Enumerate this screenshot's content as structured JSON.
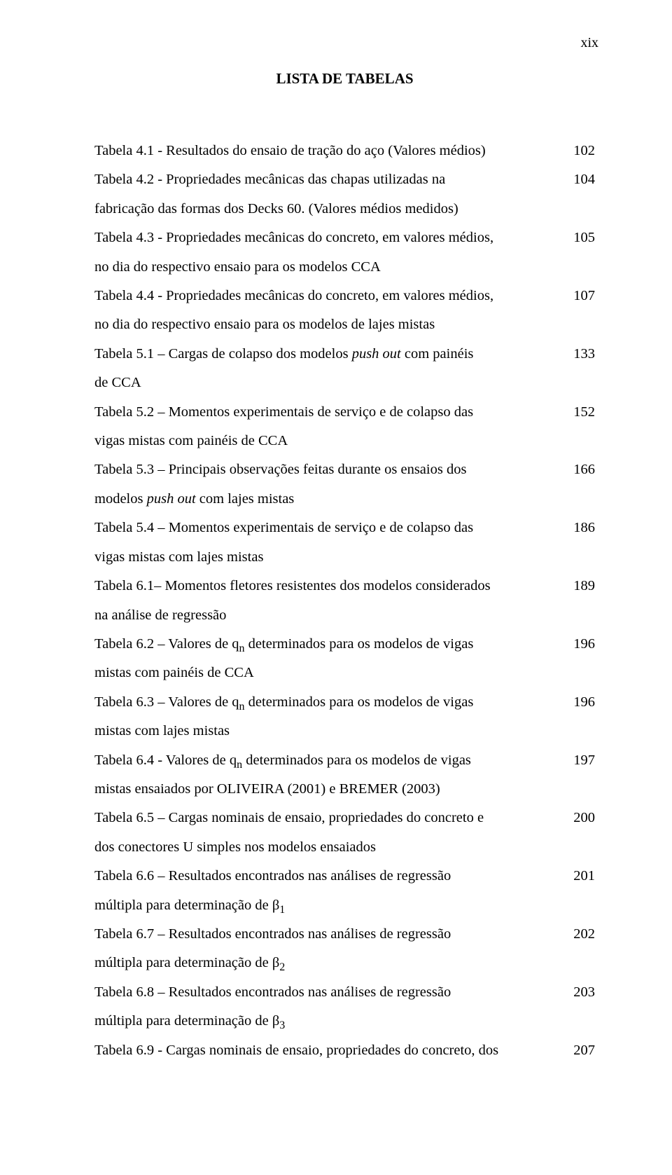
{
  "page_label": "xix",
  "title": "LISTA DE TABELAS",
  "font_family": "Times New Roman",
  "title_fontsize_pt": 16,
  "body_fontsize_pt": 15,
  "text_color": "#000000",
  "background_color": "#ffffff",
  "line_height": 2.02,
  "entries": [
    {
      "first": "Tabela 4.1 - Resultados do ensaio de tração do aço (Valores médios)",
      "rest": "",
      "page": "102"
    },
    {
      "first": "Tabela 4.2 - Propriedades mecânicas das chapas utilizadas na",
      "rest": "fabricação das formas dos Decks 60. (Valores médios medidos)",
      "page": "104"
    },
    {
      "first": "Tabela 4.3 - Propriedades mecânicas do concreto, em valores médios,",
      "rest": "no dia do respectivo ensaio para os modelos CCA",
      "page": "105"
    },
    {
      "first": "Tabela 4.4 - Propriedades mecânicas do concreto, em valores médios,",
      "rest": "no dia do respectivo ensaio para os modelos de lajes mistas",
      "page": "107"
    },
    {
      "first_html": "Tabela 5.1 – Cargas de colapso dos modelos <span class=\"italic\">push out</span> com painéis",
      "rest": "de CCA",
      "page": "133"
    },
    {
      "first": "Tabela 5.2 – Momentos experimentais de serviço e de colapso das",
      "rest": "vigas mistas com painéis de CCA",
      "page": "152"
    },
    {
      "first": "Tabela 5.3 – Principais observações feitas durante os ensaios dos",
      "rest_html": "modelos <span class=\"italic\">push out</span> com lajes mistas",
      "page": "166"
    },
    {
      "first": "Tabela 5.4 – Momentos experimentais de serviço e de colapso das",
      "rest": "vigas mistas com lajes mistas",
      "page": "186"
    },
    {
      "first": "Tabela 6.1– Momentos fletores resistentes dos modelos considerados",
      "rest": "na análise de regressão",
      "page": "189"
    },
    {
      "first_html": "Tabela 6.2 – Valores de q<sub>n</sub> determinados para os modelos de vigas",
      "rest": "mistas com painéis de CCA",
      "page": "196"
    },
    {
      "first_html": "Tabela 6.3 – Valores de q<sub>n</sub> determinados para os modelos de vigas",
      "rest": "mistas com lajes mistas",
      "page": "196"
    },
    {
      "first_html": "Tabela 6.4 - Valores de q<sub>n</sub> determinados para os modelos de vigas",
      "rest": "mistas ensaiados por OLIVEIRA (2001) e BREMER (2003)",
      "page": "197"
    },
    {
      "first": "Tabela 6.5 – Cargas nominais de ensaio, propriedades do concreto e",
      "rest": "dos conectores U simples nos modelos ensaiados",
      "page": "200"
    },
    {
      "first": "Tabela 6.6 – Resultados encontrados nas análises de regressão",
      "rest_html": "múltipla para determinação de β<sub>1</sub>",
      "page": "201"
    },
    {
      "first": "Tabela 6.7 – Resultados encontrados nas análises de regressão",
      "rest_html": "múltipla para determinação de β<sub>2</sub>",
      "page": "202"
    },
    {
      "first": "Tabela 6.8 – Resultados encontrados nas análises de regressão",
      "rest_html": "múltipla para determinação de β<sub>3</sub>",
      "page": "203"
    },
    {
      "first": "Tabela 6.9 - Cargas nominais de ensaio, propriedades do concreto, dos",
      "rest": "",
      "page": "207"
    }
  ]
}
